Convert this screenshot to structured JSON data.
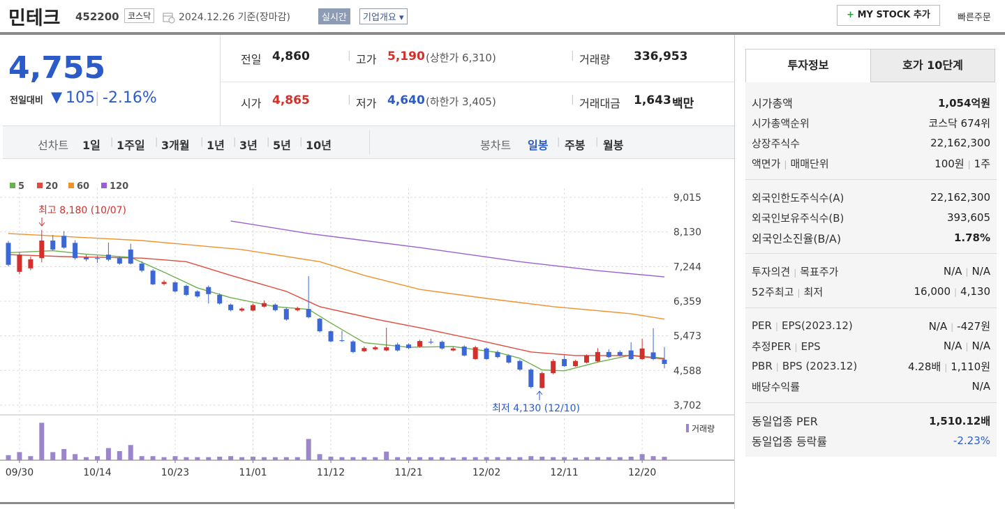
{
  "header": {
    "name": "민테크",
    "code": "452200",
    "market": "코스닥",
    "date": "2024.12.26 기준(장마감)",
    "realtime": "실시간",
    "company_info": "기업개요",
    "mystock": "MY STOCK 추가",
    "quick_order": "빠른주문"
  },
  "quote": {
    "price": "4,755",
    "change_label": "전일대비",
    "change": "105",
    "change_pct": "-2.16%",
    "items": [
      {
        "label": "전일",
        "value": "4,860"
      },
      {
        "label": "고가",
        "value": "5,190",
        "sub": "(상한가 6,310)"
      },
      {
        "label": "거래량",
        "value": "336,953"
      },
      {
        "label": "시가",
        "value": "4,865"
      },
      {
        "label": "저가",
        "value": "4,640",
        "sub": "(하한가 3,405)"
      },
      {
        "label": "거래대금",
        "value": "1,643",
        "unit": "백만"
      }
    ]
  },
  "tabs": {
    "line_chart": "선차트",
    "line_periods": [
      "1일",
      "1주일",
      "3개월",
      "1년",
      "3년",
      "5년",
      "10년"
    ],
    "candle_chart": "봉차트",
    "candle_periods": [
      "일봉",
      "주봉",
      "월봉"
    ]
  },
  "chart_data": {
    "type": "candlestick",
    "grid": true,
    "up_color": "#d2302a",
    "down_color": "#3b68d4",
    "categories": [
      null,
      "09/30",
      null,
      null,
      null,
      null,
      null,
      null,
      "10/14",
      null,
      null,
      null,
      null,
      null,
      null,
      "10/23",
      null,
      null,
      null,
      null,
      null,
      null,
      "11/01",
      null,
      null,
      null,
      null,
      null,
      null,
      "11/12",
      null,
      null,
      null,
      null,
      null,
      null,
      "11/21",
      null,
      null,
      null,
      null,
      null,
      null,
      "12/02",
      null,
      null,
      null,
      null,
      null,
      null,
      "12/11",
      null,
      null,
      null,
      null,
      null,
      null,
      "12/20",
      null,
      null
    ],
    "open": [
      7850,
      7110,
      7200,
      7460,
      7910,
      8030,
      7850,
      7480,
      7460,
      7550,
      7460,
      7680,
      7320,
      7140,
      6800,
      6840,
      6750,
      6610,
      6720,
      6520,
      6270,
      6120,
      6120,
      6220,
      6270,
      6160,
      6130,
      6160,
      5910,
      5590,
      5360,
      5330,
      5080,
      5130,
      5100,
      5250,
      5250,
      5200,
      5320,
      5320,
      5100,
      5200,
      4880,
      5150,
      5060,
      4970,
      4830,
      4610,
      4140,
      4520,
      4880,
      4700,
      4790,
      4820,
      5060,
      5060,
      5100,
      4880,
      5050,
      4865
    ],
    "high": [
      7900,
      7600,
      7500,
      8180,
      8050,
      8150,
      7920,
      7550,
      7520,
      7860,
      7500,
      7830,
      7380,
      7180,
      6900,
      6870,
      6780,
      6640,
      6760,
      6560,
      6300,
      6200,
      6300,
      6380,
      6300,
      6200,
      6220,
      7000,
      5930,
      5610,
      5600,
      5360,
      5200,
      5220,
      5680,
      5300,
      5280,
      5370,
      5400,
      5350,
      5190,
      5230,
      5220,
      5180,
      5100,
      5000,
      4870,
      4640,
      4560,
      4880,
      4980,
      4860,
      5000,
      5160,
      5130,
      5100,
      5310,
      5400,
      5670,
      5190
    ],
    "low": [
      7250,
      7050,
      7150,
      7350,
      7650,
      7700,
      7420,
      7380,
      7340,
      7380,
      7290,
      7300,
      7100,
      6770,
      6760,
      6580,
      6490,
      6450,
      6300,
      6270,
      6100,
      6090,
      6100,
      6200,
      6100,
      5860,
      6100,
      5920,
      5560,
      5310,
      5320,
      5030,
      5060,
      5100,
      5080,
      5070,
      5130,
      5170,
      5260,
      5120,
      5080,
      4950,
      4860,
      4860,
      4900,
      4760,
      4580,
      4130,
      4130,
      4490,
      4680,
      4680,
      4770,
      4800,
      4900,
      4940,
      4860,
      4860,
      4850,
      4640
    ],
    "close": [
      7290,
      7550,
      7430,
      7910,
      7680,
      7730,
      7460,
      7430,
      7440,
      7420,
      7320,
      7320,
      7140,
      6790,
      6850,
      6610,
      6520,
      6480,
      6540,
      6300,
      6130,
      6170,
      6260,
      6310,
      6130,
      5890,
      6180,
      5950,
      5590,
      5330,
      5340,
      5060,
      5160,
      5180,
      5180,
      5100,
      5160,
      5340,
      5300,
      5150,
      5150,
      4970,
      5180,
      4880,
      4930,
      4790,
      4610,
      4165,
      4520,
      4830,
      4700,
      4830,
      4970,
      5060,
      4930,
      4970,
      4880,
      5150,
      4880,
      4755
    ],
    "ylim": [
      3702,
      9015
    ],
    "yticks": [
      {
        "value": 9015,
        "label": "9,015"
      },
      {
        "value": 8130,
        "label": "8,130"
      },
      {
        "value": 7244,
        "label": "7,244"
      },
      {
        "value": 6359,
        "label": "6,359"
      },
      {
        "value": 5473,
        "label": "5,473"
      },
      {
        "value": 4588,
        "label": "4,588"
      },
      {
        "value": 3702,
        "label": "3,702"
      }
    ],
    "series": [
      {
        "name": "5",
        "color": "#6ab04c",
        "x": [
          0,
          4,
          7,
          11,
          14,
          17,
          20,
          24,
          27,
          29,
          32,
          36,
          40,
          44,
          46,
          48,
          50,
          53,
          56,
          59
        ],
        "values": [
          7600,
          7650,
          7560,
          7480,
          7100,
          6700,
          6450,
          6220,
          6150,
          5800,
          5300,
          5180,
          5200,
          5050,
          4900,
          4600,
          4580,
          4800,
          4980,
          4900
        ]
      },
      {
        "name": "20",
        "color": "#e14b3c",
        "x": [
          0,
          5,
          12,
          16,
          20,
          25,
          28,
          33,
          37,
          42,
          47,
          51,
          56,
          59
        ],
        "values": [
          7550,
          7500,
          7460,
          7370,
          7020,
          6610,
          6220,
          5900,
          5680,
          5380,
          5060,
          4970,
          4970,
          4880
        ]
      },
      {
        "name": "60",
        "color": "#f0922b",
        "x": [
          0,
          12,
          21,
          28,
          32,
          37,
          43,
          49,
          56,
          59
        ],
        "values": [
          8090,
          7910,
          7680,
          7370,
          7020,
          6660,
          6430,
          6220,
          6040,
          5900
        ]
      },
      {
        "name": "120",
        "color": "#9a5fd0",
        "x": [
          20,
          27,
          37,
          46,
          53,
          59
        ],
        "values": [
          8410,
          8090,
          7730,
          7370,
          7140,
          6980
        ]
      }
    ],
    "annotations": [
      "최고 8,180 (10/07)",
      "최저 4,130 (12/10)"
    ],
    "volume": {
      "name": "거래량",
      "color": "#9b86cc",
      "ylim": [
        0,
        4000000
      ],
      "values": [
        500000,
        800000,
        400000,
        3700000,
        800000,
        1100000,
        600000,
        300000,
        400000,
        1200000,
        900000,
        1500000,
        400000,
        400000,
        300000,
        400000,
        300000,
        300000,
        300000,
        350000,
        400000,
        300000,
        350000,
        300000,
        300000,
        300000,
        300000,
        2100000,
        600000,
        350000,
        300000,
        300000,
        300000,
        300000,
        850000,
        300000,
        300000,
        300000,
        300000,
        300000,
        250000,
        300000,
        300000,
        300000,
        300000,
        300000,
        300000,
        400000,
        350000,
        300000,
        300000,
        250000,
        300000,
        300000,
        300000,
        300000,
        350000,
        600000,
        400000,
        336953
      ]
    }
  },
  "side": {
    "tabs": [
      "투자정보",
      "호가 10단계"
    ],
    "groups": [
      [
        {
          "label": [
            "시가총액"
          ],
          "value": [
            "1,054억원"
          ]
        },
        {
          "label": [
            "시가총액순위"
          ],
          "value": [
            "코스닥 674위"
          ]
        },
        {
          "label": [
            "상장주식수"
          ],
          "value": [
            "22,162,300"
          ]
        },
        {
          "label": [
            "액면가",
            "매매단위"
          ],
          "value": [
            "100원",
            "1주"
          ]
        }
      ],
      [
        {
          "label": [
            "외국인한도주식수(A)"
          ],
          "value": [
            "22,162,300"
          ]
        },
        {
          "label": [
            "외국인보유주식수(B)"
          ],
          "value": [
            "393,605"
          ]
        },
        {
          "label": [
            "외국인소진율(B/A)"
          ],
          "value": [
            "1.78%"
          ]
        }
      ],
      [
        {
          "label": [
            "투자의견",
            "목표주가"
          ],
          "value": [
            "N/A",
            "N/A"
          ]
        },
        {
          "label": [
            "52주최고",
            "최저"
          ],
          "value": [
            "16,000",
            "4,130"
          ]
        }
      ],
      [
        {
          "label": [
            "PER",
            "EPS(2023.12)"
          ],
          "value": [
            "N/A",
            "-427원"
          ]
        },
        {
          "label": [
            "추정PER",
            "EPS"
          ],
          "value": [
            "N/A",
            "N/A"
          ]
        },
        {
          "label": [
            "PBR",
            "BPS (2023.12)"
          ],
          "value": [
            "4.28배",
            "1,110원"
          ]
        },
        {
          "label": [
            "배당수익률"
          ],
          "value": [
            "N/A"
          ]
        }
      ],
      [
        {
          "label": [
            "동일업종 PER"
          ],
          "value": [
            "1,510.12배"
          ]
        },
        {
          "label": [
            "동일업종 등락률"
          ],
          "value": [
            "-2.23%"
          ]
        }
      ]
    ]
  }
}
